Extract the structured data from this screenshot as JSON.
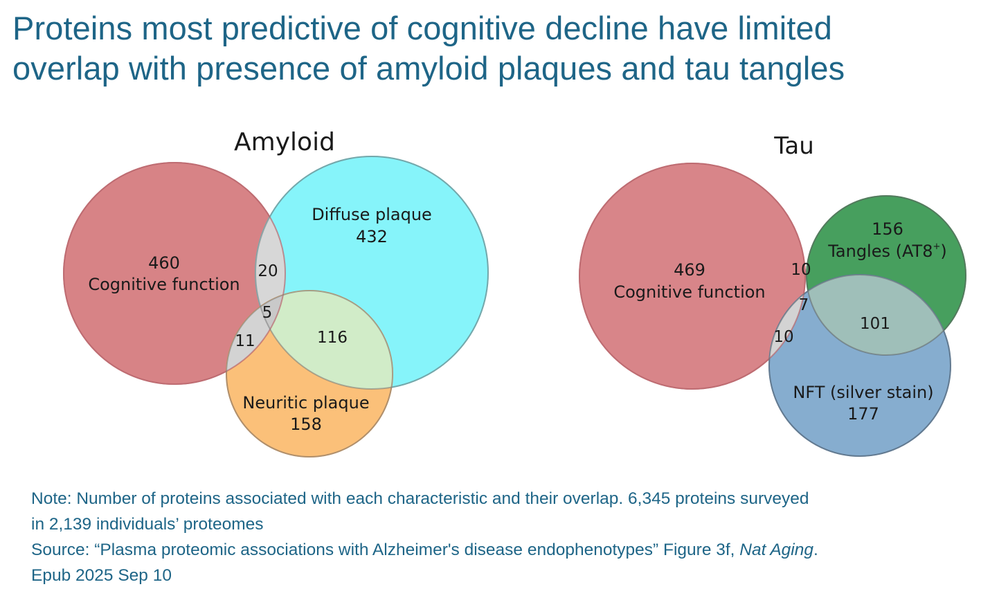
{
  "title": {
    "line1": "Proteins most predictive of cognitive decline have limited",
    "line2": "overlap with presence of amyloid plaques and tau tangles"
  },
  "amyloid": {
    "heading": "Amyloid",
    "cognitive": {
      "count": "460",
      "label": "Cognitive function",
      "color": "#d4787c"
    },
    "diffuse": {
      "label": "Diffuse plaque",
      "count": "432",
      "color": "#7ff3fa"
    },
    "neuritic": {
      "label": "Neuritic plaque",
      "count": "158",
      "color": "#fbb96a"
    },
    "overlaps": {
      "cognitive_diffuse": "20",
      "all_three": "5",
      "cognitive_neuritic": "11",
      "diffuse_neuritic": "116"
    }
  },
  "tau": {
    "heading": "Tau",
    "cognitive": {
      "count": "469",
      "label": "Cognitive function",
      "color": "#d4787c"
    },
    "tangles": {
      "count": "156",
      "label": "Tangles (AT8",
      "superscript": "+",
      "label_close": ")",
      "color": "#3d9a55"
    },
    "nft": {
      "label": "NFT (silver stain)",
      "count": "177",
      "color": "#7ca6cb"
    },
    "overlaps": {
      "cognitive_tangles": "10",
      "all_three": "7",
      "cognitive_nft": "10",
      "tangles_nft": "101"
    }
  },
  "footer": {
    "note_line1": "Note: Number of proteins associated with each characteristic and their overlap. 6,345 proteins surveyed",
    "note_line2": "in 2,139 individuals’ proteomes",
    "source_prefix": "Source: “Plasma proteomic associations with Alzheimer's  disease endophenotypes” Figure 3f, ",
    "source_journal": "Nat Aging",
    "source_suffix": ".",
    "source_line2": "Epub 2025 Sep 10"
  }
}
